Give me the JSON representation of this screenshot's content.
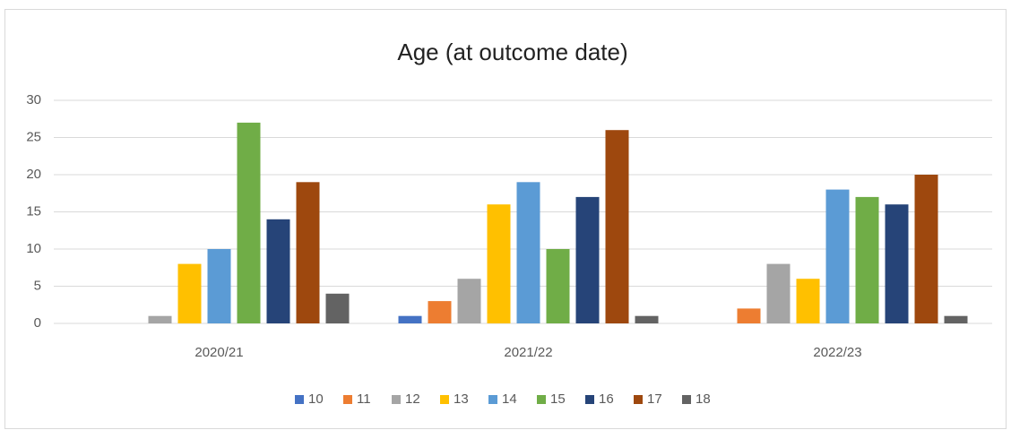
{
  "chart_data": {
    "type": "bar",
    "title": "Age (at outcome date)",
    "categories": [
      "2020/21",
      "2021/22",
      "2022/23"
    ],
    "series": [
      {
        "name": "10",
        "color": "#4472c4",
        "values": [
          0,
          1,
          0
        ]
      },
      {
        "name": "11",
        "color": "#ed7d31",
        "values": [
          0,
          3,
          2
        ]
      },
      {
        "name": "12",
        "color": "#a5a5a5",
        "values": [
          1,
          6,
          8
        ]
      },
      {
        "name": "13",
        "color": "#ffc000",
        "values": [
          8,
          16,
          6
        ]
      },
      {
        "name": "14",
        "color": "#5b9bd5",
        "values": [
          10,
          19,
          18
        ]
      },
      {
        "name": "15",
        "color": "#70ad47",
        "values": [
          27,
          10,
          17
        ]
      },
      {
        "name": "16",
        "color": "#264478",
        "values": [
          14,
          17,
          16
        ]
      },
      {
        "name": "17",
        "color": "#9e480e",
        "values": [
          19,
          26,
          20
        ]
      },
      {
        "name": "18",
        "color": "#636363",
        "values": [
          4,
          1,
          1
        ]
      }
    ],
    "ylim": [
      0,
      30
    ],
    "yticks": [
      0,
      5,
      10,
      15,
      20,
      25,
      30
    ],
    "grid": true,
    "legend": "bottom"
  }
}
